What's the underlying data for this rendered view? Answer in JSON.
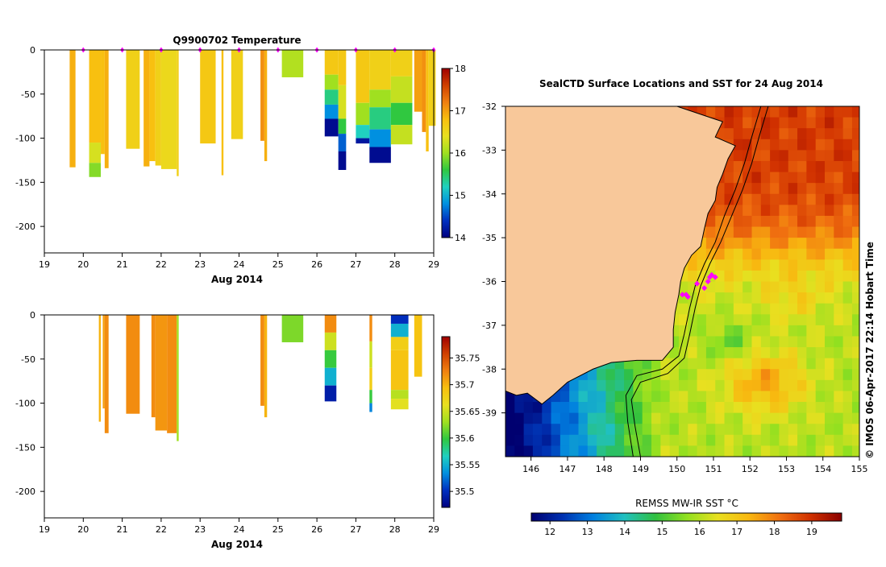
{
  "colors": {
    "land": "#f8c89a",
    "marker": "#ff00ff",
    "temperature_scale": [
      "#000080",
      "#0030c0",
      "#0090e0",
      "#20d0c0",
      "#30c840",
      "#a0e020",
      "#e8e020",
      "#f8c010",
      "#f08010",
      "#d04000",
      "#a00000"
    ],
    "salinity_scale": [
      "#000080",
      "#0030c0",
      "#0090e0",
      "#20d0c0",
      "#30c840",
      "#a0e020",
      "#e8e020",
      "#f8c010",
      "#f08010",
      "#d04000",
      "#a00000"
    ],
    "sst_scale": [
      "#000070",
      "#0030b0",
      "#0080e0",
      "#20c0c0",
      "#30c040",
      "#90e020",
      "#e8e020",
      "#f8b810",
      "#f07010",
      "#d03000",
      "#8a0000"
    ]
  },
  "chart_data": [
    {
      "type": "heatmap",
      "id": "temperature",
      "title": "Q9900702  Temperature",
      "xlabel": "Aug 2014",
      "ylabel": "",
      "xlim": [
        19,
        29
      ],
      "ylim": [
        -230,
        0
      ],
      "x_ticks": [
        19,
        20,
        21,
        22,
        23,
        24,
        25,
        26,
        27,
        28,
        29
      ],
      "y_ticks": [
        0,
        -50,
        -100,
        -150,
        -200
      ],
      "colorbar": {
        "min": 14,
        "max": 18,
        "ticks": [
          14,
          15,
          16,
          17,
          18
        ]
      },
      "profile_times": [
        20,
        21,
        22,
        23,
        24,
        25,
        26,
        27,
        28,
        29
      ],
      "casts": [
        {
          "t0": 19.65,
          "t1": 19.8,
          "depth": 133,
          "bands": [
            [
              0,
              133,
              16.9
            ]
          ]
        },
        {
          "t0": 20.15,
          "t1": 20.45,
          "depth": 144,
          "bands": [
            [
              0,
              105,
              16.8
            ],
            [
              105,
              128,
              16.3
            ],
            [
              128,
              144,
              15.9
            ]
          ]
        },
        {
          "t0": 20.45,
          "t1": 20.55,
          "depth": 118,
          "bands": [
            [
              0,
              118,
              16.8
            ]
          ]
        },
        {
          "t0": 20.55,
          "t1": 20.65,
          "depth": 134,
          "bands": [
            [
              0,
              134,
              16.9
            ]
          ]
        },
        {
          "t0": 21.1,
          "t1": 21.45,
          "depth": 112,
          "bands": [
            [
              0,
              112,
              16.6
            ]
          ]
        },
        {
          "t0": 21.55,
          "t1": 21.7,
          "depth": 132,
          "bands": [
            [
              0,
              132,
              16.9
            ]
          ]
        },
        {
          "t0": 21.7,
          "t1": 21.85,
          "depth": 126,
          "bands": [
            [
              0,
              126,
              16.8
            ]
          ]
        },
        {
          "t0": 21.85,
          "t1": 22.0,
          "depth": 131,
          "bands": [
            [
              0,
              131,
              16.6
            ]
          ]
        },
        {
          "t0": 22.0,
          "t1": 22.4,
          "depth": 135,
          "bands": [
            [
              0,
              135,
              16.5
            ]
          ]
        },
        {
          "t0": 22.4,
          "t1": 22.45,
          "depth": 143,
          "bands": [
            [
              0,
              143,
              16.6
            ]
          ]
        },
        {
          "t0": 23.0,
          "t1": 23.4,
          "depth": 106,
          "bands": [
            [
              0,
              106,
              16.7
            ]
          ]
        },
        {
          "t0": 23.55,
          "t1": 23.6,
          "depth": 142,
          "bands": [
            [
              0,
              142,
              16.8
            ]
          ]
        },
        {
          "t0": 23.8,
          "t1": 24.1,
          "depth": 101,
          "bands": [
            [
              0,
              101,
              16.6
            ]
          ]
        },
        {
          "t0": 24.55,
          "t1": 24.65,
          "depth": 103,
          "bands": [
            [
              0,
              103,
              17.1
            ]
          ]
        },
        {
          "t0": 24.65,
          "t1": 24.72,
          "depth": 126,
          "bands": [
            [
              0,
              126,
              16.9
            ]
          ]
        },
        {
          "t0": 25.1,
          "t1": 25.65,
          "depth": 31,
          "bands": [
            [
              0,
              31,
              16.1
            ]
          ]
        },
        {
          "t0": 26.2,
          "t1": 26.55,
          "depth": 98,
          "bands": [
            [
              0,
              28,
              16.7
            ],
            [
              28,
              45,
              16.0
            ],
            [
              45,
              62,
              15.4
            ],
            [
              62,
              78,
              14.8
            ],
            [
              78,
              98,
              14.1
            ]
          ]
        },
        {
          "t0": 26.55,
          "t1": 26.75,
          "depth": 136,
          "bands": [
            [
              0,
              40,
              16.7
            ],
            [
              40,
              78,
              16.3
            ],
            [
              78,
              95,
              15.6
            ],
            [
              95,
              115,
              14.6
            ],
            [
              115,
              136,
              14.1
            ]
          ]
        },
        {
          "t0": 27.0,
          "t1": 27.35,
          "depth": 106,
          "bands": [
            [
              0,
              60,
              16.7
            ],
            [
              60,
              85,
              16.0
            ],
            [
              85,
              100,
              15.2
            ],
            [
              100,
              106,
              14.2
            ]
          ]
        },
        {
          "t0": 27.35,
          "t1": 27.9,
          "depth": 128,
          "bands": [
            [
              0,
              45,
              16.6
            ],
            [
              45,
              65,
              16.0
            ],
            [
              65,
              90,
              15.4
            ],
            [
              90,
              110,
              14.8
            ],
            [
              110,
              128,
              14.1
            ]
          ]
        },
        {
          "t0": 27.9,
          "t1": 28.45,
          "depth": 107,
          "bands": [
            [
              0,
              30,
              16.6
            ],
            [
              30,
              60,
              16.2
            ],
            [
              60,
              85,
              15.6
            ],
            [
              85,
              107,
              16.2
            ]
          ]
        },
        {
          "t0": 28.5,
          "t1": 28.7,
          "depth": 70,
          "bands": [
            [
              0,
              70,
              17.0
            ]
          ]
        },
        {
          "t0": 28.7,
          "t1": 28.8,
          "depth": 93,
          "bands": [
            [
              0,
              93,
              17.1
            ]
          ]
        },
        {
          "t0": 28.8,
          "t1": 28.87,
          "depth": 115,
          "bands": [
            [
              0,
              115,
              16.8
            ]
          ]
        },
        {
          "t0": 28.87,
          "t1": 29.05,
          "depth": 86,
          "bands": [
            [
              0,
              86,
              16.6
            ]
          ]
        }
      ]
    },
    {
      "type": "heatmap",
      "id": "salinity",
      "title": "",
      "xlabel": "Aug 2014",
      "ylabel": "",
      "xlim": [
        19,
        29
      ],
      "ylim": [
        -230,
        0
      ],
      "x_ticks": [
        19,
        20,
        21,
        22,
        23,
        24,
        25,
        26,
        27,
        28,
        29
      ],
      "y_ticks": [
        0,
        -50,
        -100,
        -150,
        -200
      ],
      "colorbar": {
        "min": 35.47,
        "max": 35.79,
        "ticks": [
          35.5,
          35.55,
          35.6,
          35.65,
          35.7,
          35.75
        ]
      },
      "casts": [
        {
          "t0": 20.4,
          "t1": 20.45,
          "depth": 121,
          "bands": [
            [
              0,
              121,
              35.7
            ]
          ]
        },
        {
          "t0": 20.5,
          "t1": 20.55,
          "depth": 106,
          "bands": [
            [
              0,
              106,
              35.71
            ]
          ]
        },
        {
          "t0": 20.55,
          "t1": 20.65,
          "depth": 134,
          "bands": [
            [
              0,
              134,
              35.72
            ]
          ]
        },
        {
          "t0": 21.1,
          "t1": 21.45,
          "depth": 112,
          "bands": [
            [
              0,
              112,
              35.72
            ]
          ]
        },
        {
          "t0": 21.75,
          "t1": 21.85,
          "depth": 116,
          "bands": [
            [
              0,
              116,
              35.72
            ]
          ]
        },
        {
          "t0": 21.85,
          "t1": 22.15,
          "depth": 131,
          "bands": [
            [
              0,
              131,
              35.715
            ]
          ]
        },
        {
          "t0": 22.15,
          "t1": 22.4,
          "depth": 134,
          "bands": [
            [
              0,
              134,
              35.72
            ]
          ]
        },
        {
          "t0": 22.4,
          "t1": 22.45,
          "depth": 143,
          "bands": [
            [
              0,
              143,
              35.63
            ]
          ]
        },
        {
          "t0": 24.55,
          "t1": 24.65,
          "depth": 103,
          "bands": [
            [
              0,
              103,
              35.72
            ]
          ]
        },
        {
          "t0": 24.65,
          "t1": 24.72,
          "depth": 116,
          "bands": [
            [
              0,
              116,
              35.7
            ]
          ]
        },
        {
          "t0": 25.1,
          "t1": 25.65,
          "depth": 31,
          "bands": [
            [
              0,
              31,
              35.62
            ]
          ]
        },
        {
          "t0": 26.2,
          "t1": 26.5,
          "depth": 98,
          "bands": [
            [
              0,
              20,
              35.72
            ],
            [
              20,
              40,
              35.65
            ],
            [
              40,
              60,
              35.6
            ],
            [
              60,
              80,
              35.55
            ],
            [
              80,
              98,
              35.49
            ]
          ]
        },
        {
          "t0": 27.35,
          "t1": 27.42,
          "depth": 110,
          "bands": [
            [
              0,
              30,
              35.72
            ],
            [
              30,
              60,
              35.65
            ],
            [
              60,
              85,
              35.68
            ],
            [
              85,
              100,
              35.6
            ],
            [
              100,
              110,
              35.53
            ]
          ]
        },
        {
          "t0": 27.9,
          "t1": 28.35,
          "depth": 107,
          "bands": [
            [
              0,
              10,
              35.5
            ],
            [
              10,
              25,
              35.55
            ],
            [
              25,
              40,
              35.68
            ],
            [
              40,
              85,
              35.69
            ],
            [
              85,
              95,
              35.64
            ],
            [
              95,
              107,
              35.66
            ]
          ]
        },
        {
          "t0": 28.5,
          "t1": 28.7,
          "depth": 70,
          "bands": [
            [
              0,
              70,
              35.69
            ]
          ]
        }
      ]
    },
    {
      "type": "heatmap",
      "id": "sst_map",
      "title": "SealCTD Surface Locations and SST for 24 Aug 2014",
      "xlabel": "",
      "ylabel": "",
      "xlim": [
        145.3,
        155
      ],
      "ylim": [
        -40,
        -32
      ],
      "x_ticks": [
        146,
        147,
        148,
        149,
        150,
        151,
        152,
        153,
        154,
        155
      ],
      "y_ticks": [
        -32,
        -33,
        -34,
        -35,
        -36,
        -37,
        -38,
        -39
      ],
      "colorbar": {
        "label": "REMSS MW-IR SST °C",
        "min": 11.5,
        "max": 19.8,
        "ticks": [
          12,
          13,
          14,
          15,
          16,
          17,
          18,
          19
        ]
      },
      "side_label": "©  IMOS 06-Apr-2017 22:14 Hobart Time",
      "coast": [
        [
          150.0,
          -32.0
        ],
        [
          151.25,
          -32.35
        ],
        [
          151.05,
          -32.7
        ],
        [
          151.6,
          -32.9
        ],
        [
          151.4,
          -33.2
        ],
        [
          151.25,
          -33.55
        ],
        [
          151.1,
          -33.85
        ],
        [
          151.05,
          -34.15
        ],
        [
          150.85,
          -34.45
        ],
        [
          150.75,
          -34.8
        ],
        [
          150.65,
          -35.2
        ],
        [
          150.4,
          -35.4
        ],
        [
          150.2,
          -35.7
        ],
        [
          150.1,
          -36.0
        ],
        [
          150.05,
          -36.3
        ],
        [
          149.95,
          -36.7
        ],
        [
          149.9,
          -37.1
        ],
        [
          149.9,
          -37.5
        ],
        [
          149.6,
          -37.8
        ],
        [
          148.9,
          -37.8
        ],
        [
          148.2,
          -37.85
        ],
        [
          147.7,
          -38.0
        ],
        [
          147.0,
          -38.3
        ],
        [
          146.6,
          -38.6
        ],
        [
          146.3,
          -38.8
        ],
        [
          145.9,
          -38.55
        ],
        [
          145.6,
          -38.6
        ],
        [
          145.3,
          -38.5
        ]
      ],
      "shelf_contours": [
        [
          [
            152.3,
            -32.0
          ],
          [
            152.05,
            -32.7
          ],
          [
            151.85,
            -33.3
          ],
          [
            151.6,
            -33.9
          ],
          [
            151.3,
            -34.5
          ],
          [
            151.05,
            -35.1
          ],
          [
            150.75,
            -35.6
          ],
          [
            150.5,
            -36.1
          ],
          [
            150.35,
            -36.6
          ],
          [
            150.2,
            -37.2
          ],
          [
            150.05,
            -37.7
          ],
          [
            149.6,
            -38.0
          ],
          [
            148.9,
            -38.15
          ],
          [
            148.6,
            -38.6
          ],
          [
            148.65,
            -39.2
          ],
          [
            148.8,
            -40.0
          ]
        ],
        [
          [
            152.5,
            -32.0
          ],
          [
            152.25,
            -32.7
          ],
          [
            152.05,
            -33.3
          ],
          [
            151.8,
            -33.9
          ],
          [
            151.5,
            -34.5
          ],
          [
            151.2,
            -35.1
          ],
          [
            150.9,
            -35.6
          ],
          [
            150.65,
            -36.1
          ],
          [
            150.5,
            -36.6
          ],
          [
            150.35,
            -37.2
          ],
          [
            150.2,
            -37.75
          ],
          [
            149.75,
            -38.1
          ],
          [
            149.0,
            -38.3
          ],
          [
            148.75,
            -38.7
          ],
          [
            148.85,
            -39.3
          ],
          [
            149.0,
            -40.0
          ]
        ]
      ],
      "surface_locations": [
        [
          150.15,
          -36.3
        ],
        [
          150.25,
          -36.3
        ],
        [
          150.3,
          -36.35
        ],
        [
          150.55,
          -36.05
        ],
        [
          150.75,
          -36.15
        ],
        [
          150.85,
          -36.0
        ],
        [
          150.9,
          -35.9
        ],
        [
          150.95,
          -35.85
        ],
        [
          151.05,
          -35.9
        ]
      ]
    }
  ]
}
